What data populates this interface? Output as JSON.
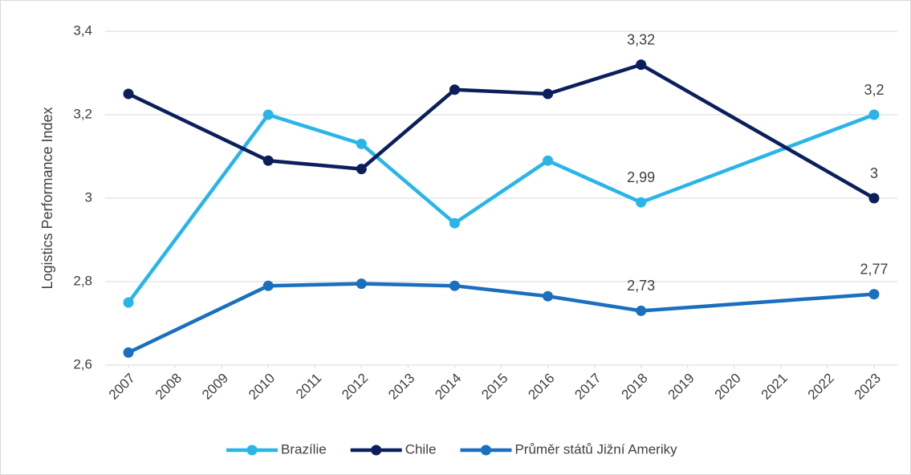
{
  "chart_data": {
    "type": "line",
    "y_label": "Logistics Performance Index",
    "x": [
      2007,
      2010,
      2012,
      2014,
      2016,
      2018,
      2023
    ],
    "xlim": [
      2006.5,
      2023.5
    ],
    "xticks": [
      2007,
      2008,
      2009,
      2010,
      2011,
      2012,
      2013,
      2014,
      2015,
      2016,
      2017,
      2018,
      2019,
      2020,
      2021,
      2022,
      2023
    ],
    "ylim": [
      2.6,
      3.4
    ],
    "yticks": [
      {
        "value": 2.6,
        "label": "2,6"
      },
      {
        "value": 2.8,
        "label": "2,8"
      },
      3,
      {
        "value": 3.2,
        "label": "3,2"
      },
      {
        "value": 3.4,
        "label": "3,4"
      }
    ],
    "grid": true,
    "legend": "bottom",
    "series": [
      {
        "name": "Brazílie",
        "color": "#29b5e8",
        "values": [
          2.75,
          3.2,
          3.13,
          2.94,
          3.09,
          2.99,
          3.2
        ],
        "value_labels": [
          null,
          null,
          null,
          null,
          null,
          "2,99",
          "3,2"
        ]
      },
      {
        "name": "Chile",
        "color": "#0b1f5c",
        "values": [
          3.25,
          3.09,
          3.07,
          3.26,
          3.25,
          3.32,
          3.0
        ],
        "value_labels": [
          null,
          null,
          null,
          null,
          null,
          "3,32",
          "3"
        ]
      },
      {
        "name": "Průměr států Jižní Ameriky",
        "color": "#1a6fbe",
        "values": [
          2.63,
          2.79,
          2.795,
          2.79,
          2.765,
          2.73,
          2.77
        ],
        "value_labels": [
          null,
          null,
          null,
          null,
          null,
          "2,73",
          "2,77"
        ]
      }
    ]
  }
}
